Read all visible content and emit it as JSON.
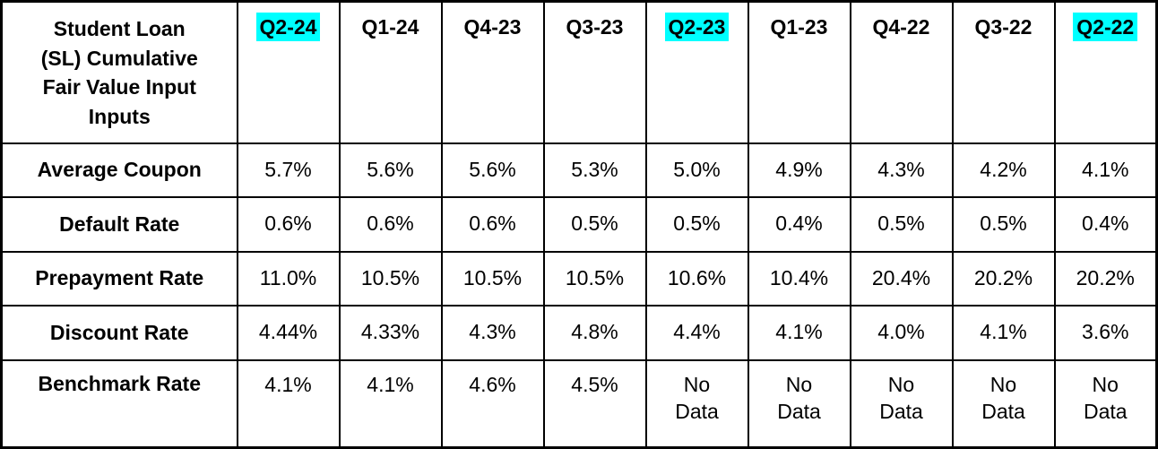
{
  "chart_data": {
    "type": "table",
    "title": "Student Loan (SL) Cumulative Fair Value Input Inputs",
    "columns": [
      "Q2-24",
      "Q1-24",
      "Q4-23",
      "Q3-23",
      "Q2-23",
      "Q1-23",
      "Q4-22",
      "Q3-22",
      "Q2-22"
    ],
    "highlighted_columns": [
      "Q2-24",
      "Q2-23",
      "Q2-22"
    ],
    "rows": [
      {
        "label": "Average Coupon",
        "values": [
          "5.7%",
          "5.6%",
          "5.6%",
          "5.3%",
          "5.0%",
          "4.9%",
          "4.3%",
          "4.2%",
          "4.1%"
        ]
      },
      {
        "label": "Default Rate",
        "values": [
          "0.6%",
          "0.6%",
          "0.6%",
          "0.5%",
          "0.5%",
          "0.4%",
          "0.5%",
          "0.5%",
          "0.4%"
        ]
      },
      {
        "label": "Prepayment Rate",
        "values": [
          "11.0%",
          "10.5%",
          "10.5%",
          "10.5%",
          "10.6%",
          "10.4%",
          "20.4%",
          "20.2%",
          "20.2%"
        ]
      },
      {
        "label": "Discount Rate",
        "values": [
          "4.44%",
          "4.33%",
          "4.3%",
          "4.8%",
          "4.4%",
          "4.1%",
          "4.0%",
          "4.1%",
          "3.6%"
        ]
      },
      {
        "label": "Benchmark Rate",
        "values": [
          "4.1%",
          "4.1%",
          "4.6%",
          "4.5%",
          "No Data",
          "No Data",
          "No Data",
          "No Data",
          "No Data"
        ]
      }
    ],
    "highlight_color": "#00ffff",
    "border_color": "#000000",
    "text_color": "#000000",
    "background_color": "#ffffff",
    "grid": true,
    "legend_position": "none"
  }
}
